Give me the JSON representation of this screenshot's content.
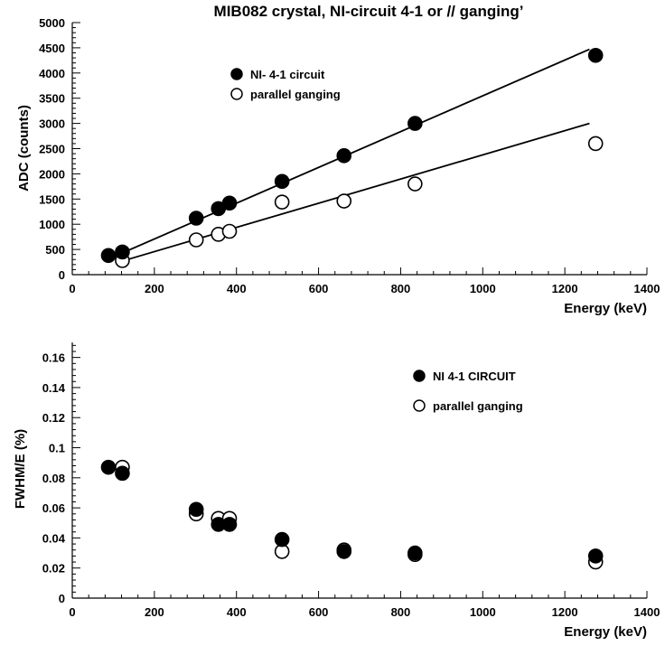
{
  "chart_data": [
    {
      "type": "scatter",
      "title": "MIB082 crystal, NI-circuit 4-1 or // ganging’",
      "xlabel": "Energy (keV)",
      "ylabel": "ADC (counts)",
      "xlim": [
        0,
        1400
      ],
      "ylim": [
        0,
        5000
      ],
      "x_ticks": [
        0,
        200,
        400,
        600,
        800,
        1000,
        1200,
        1400
      ],
      "y_ticks": [
        0,
        500,
        1000,
        1500,
        2000,
        2500,
        3000,
        3500,
        4000,
        4500,
        5000
      ],
      "legend_position": "upper-left",
      "series": [
        {
          "name": "NI- 4-1 circuit",
          "marker": "filled-circle",
          "x": [
            88,
            122,
            302,
            356,
            383,
            511,
            662,
            835,
            1275
          ],
          "y": [
            380,
            450,
            1120,
            1310,
            1420,
            1850,
            2360,
            3000,
            4350
          ],
          "fit_line": {
            "x": [
              88,
              1260
            ],
            "y": [
              310,
              4470
            ]
          }
        },
        {
          "name": "parallel ganging",
          "marker": "open-circle",
          "x": [
            122,
            302,
            356,
            383,
            511,
            662,
            835,
            1275
          ],
          "y": [
            280,
            690,
            800,
            860,
            1440,
            1460,
            1800,
            2600
          ],
          "fit_line": {
            "x": [
              122,
              1260
            ],
            "y": [
              270,
              3000
            ]
          }
        }
      ]
    },
    {
      "type": "scatter",
      "title": "",
      "xlabel": "Energy (keV)",
      "ylabel": "FWHM/E (%)",
      "xlim": [
        0,
        1400
      ],
      "ylim": [
        0,
        0.17
      ],
      "x_ticks": [
        0,
        200,
        400,
        600,
        800,
        1000,
        1200,
        1400
      ],
      "y_ticks": [
        0,
        0.02,
        0.04,
        0.06,
        0.08,
        0.1,
        0.12,
        0.14,
        0.16
      ],
      "y_tick_labels": [
        "0",
        "0.02",
        "0.04",
        "0.06",
        "0.08",
        "0.1",
        "0.12",
        "0.14",
        "0.16"
      ],
      "legend_position": "upper-right",
      "series": [
        {
          "name": "NI 4-1 CIRCUIT",
          "marker": "filled-circle",
          "x": [
            88,
            122,
            302,
            356,
            383,
            511,
            662,
            835,
            1275
          ],
          "y": [
            0.087,
            0.083,
            0.059,
            0.049,
            0.049,
            0.039,
            0.031,
            0.03,
            0.028
          ]
        },
        {
          "name": "parallel ganging",
          "marker": "open-circle",
          "x": [
            122,
            302,
            356,
            383,
            511,
            662,
            835,
            1275
          ],
          "y": [
            0.087,
            0.056,
            0.053,
            0.053,
            0.031,
            0.032,
            0.029,
            0.024
          ]
        }
      ]
    }
  ]
}
